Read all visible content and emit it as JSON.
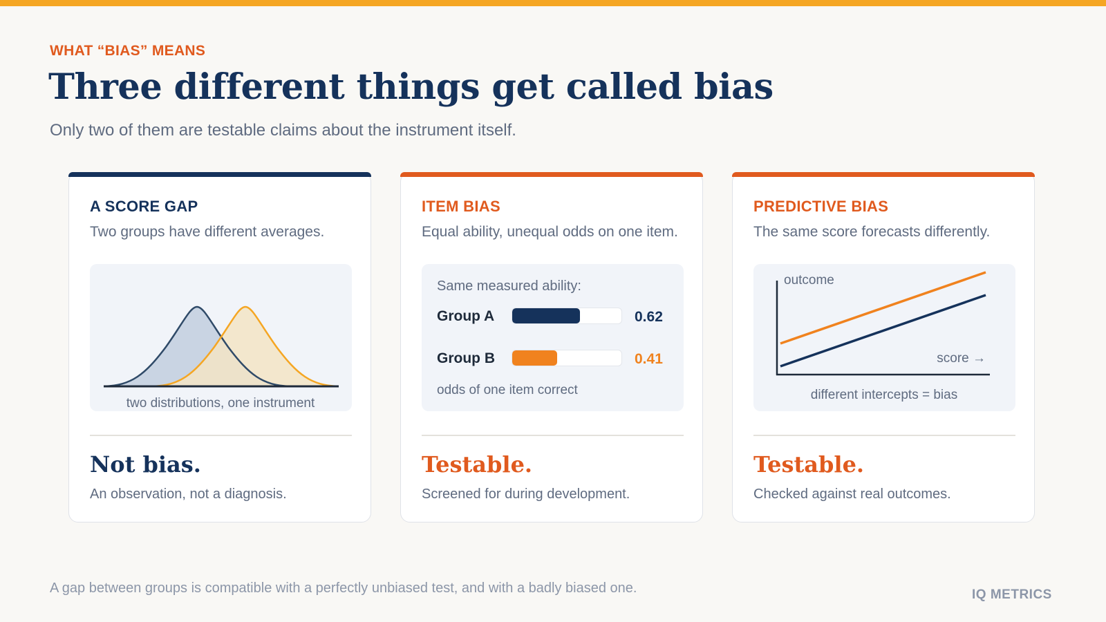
{
  "eyebrow": "WHAT “BIAS” MEANS",
  "title": "Three different things get called bias",
  "subtitle": "Only two of them are testable claims about the instrument itself.",
  "colors": {
    "navy": "#15325b",
    "orange": "#e05a1e",
    "amber": "#f5a623",
    "line_orange": "#f0821e"
  },
  "cards": [
    {
      "heading": "A SCORE GAP",
      "subheading": "Two groups have different averages.",
      "visual_caption": "two distributions, one instrument",
      "verdict": "Not bias.",
      "verdict_note": "An observation, not a diagnosis."
    },
    {
      "heading": "ITEM BIAS",
      "subheading": "Equal ability, unequal odds on one item.",
      "ability_label": "Same measured ability:",
      "groups": [
        {
          "name": "Group A",
          "value": 0.62,
          "value_label": "0.62"
        },
        {
          "name": "Group B",
          "value": 0.41,
          "value_label": "0.41"
        }
      ],
      "visual_caption": "odds of one item correct",
      "verdict": "Testable.",
      "verdict_note": "Screened for during development."
    },
    {
      "heading": "PREDICTIVE BIAS",
      "subheading": "The same score forecasts differently.",
      "y_axis_label": "outcome",
      "x_axis_label": "score →",
      "visual_caption": "different intercepts = bias",
      "verdict": "Testable.",
      "verdict_note": "Checked against real outcomes."
    }
  ],
  "footer": "A gap between groups is compatible with a perfectly unbiased test, and with a badly biased one.",
  "brand": "IQ METRICS"
}
